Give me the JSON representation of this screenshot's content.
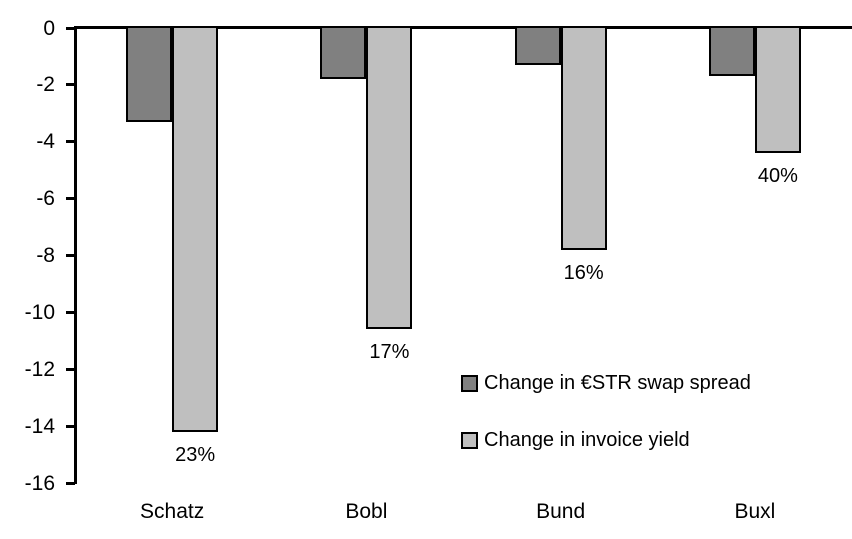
{
  "chart_data": {
    "type": "bar",
    "title": "",
    "xlabel": "",
    "ylabel": "",
    "categories": [
      "Schatz",
      "Bobl",
      "Bund",
      "Buxl"
    ],
    "series": [
      {
        "name": "Change in €STR swap spread",
        "color": "#808080",
        "values": [
          -3.3,
          -1.8,
          -1.3,
          -1.7
        ]
      },
      {
        "name": "Change in invoice yield",
        "color": "#bfbfbf",
        "values": [
          -14.2,
          -10.6,
          -7.8,
          -4.4
        ],
        "point_labels": [
          "23%",
          "17%",
          "16%",
          "40%"
        ]
      }
    ],
    "ylim": [
      -16,
      0
    ],
    "y_ticks": [
      0,
      -2,
      -4,
      -6,
      -8,
      -10,
      -12,
      -14,
      -16
    ],
    "grid": false,
    "legend_position": "inside-right",
    "axis_color": "#000000",
    "background_color": "#ffffff"
  }
}
